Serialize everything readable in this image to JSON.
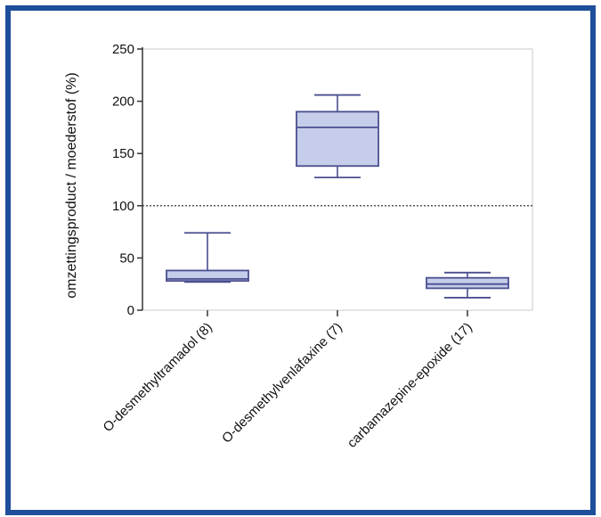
{
  "chart_data": {
    "type": "box",
    "ylabel": "omzettingsproduct / moederstof (%)",
    "ylim": [
      0,
      250
    ],
    "yticks": [
      0,
      50,
      100,
      150,
      200,
      250
    ],
    "reference_line": 100,
    "grid": false,
    "categories": [
      "O-desmethyltramadol (8)",
      "O-desmethylvenlafaxine (7)",
      "carbamazepine-epoxide (17)"
    ],
    "boxes": [
      {
        "category": "O-desmethyltramadol (8)",
        "min": 27,
        "q1": 28,
        "median": 30,
        "q3": 38,
        "max": 74
      },
      {
        "category": "O-desmethylvenlafaxine (7)",
        "min": 127,
        "q1": 138,
        "median": 175,
        "q3": 190,
        "max": 206
      },
      {
        "category": "carbamazepine-epoxide (17)",
        "min": 12,
        "q1": 21,
        "median": 25,
        "q3": 31,
        "max": 36
      }
    ],
    "colors": {
      "box_fill": "#c5cdea",
      "box_stroke": "#4a4f8f",
      "frame": "#1f4e9a"
    }
  }
}
